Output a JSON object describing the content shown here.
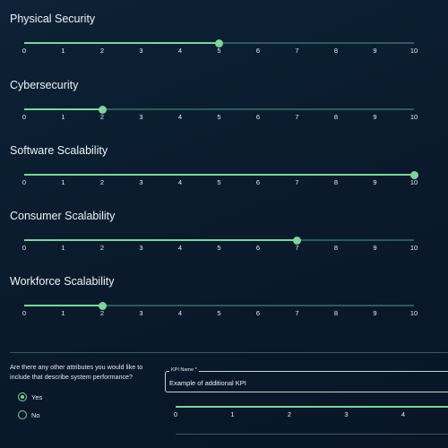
{
  "sliders": [
    {
      "title": "Physical Security",
      "value": 5
    },
    {
      "title": "Cybersecurity",
      "value": 2
    },
    {
      "title": "Software Scalability",
      "value": 10
    },
    {
      "title": "Consumer Scalability",
      "value": 7
    },
    {
      "title": "Workforce Scalability",
      "value": 2
    }
  ],
  "scale": {
    "min": 0,
    "max": 10,
    "ticks": [
      "0",
      "1",
      "2",
      "3",
      "4",
      "5",
      "6",
      "7",
      "8",
      "9",
      "10"
    ]
  },
  "extra_question": {
    "text": "Are there any other attributes you would like to include that describe system performance?",
    "options": [
      {
        "label": "Yes",
        "selected": true
      },
      {
        "label": "No",
        "selected": false
      }
    ]
  },
  "kpi_field": {
    "label": "KPI Name *",
    "value": "Example of additional KPI"
  },
  "kpi_slider": {
    "ticks": [
      "0",
      "1",
      "2",
      "3",
      "4"
    ]
  },
  "colors": {
    "background": "#0a1b2d",
    "accent": "#7fd49a",
    "track": "#2e5a5a",
    "text": "#e8eef3"
  }
}
